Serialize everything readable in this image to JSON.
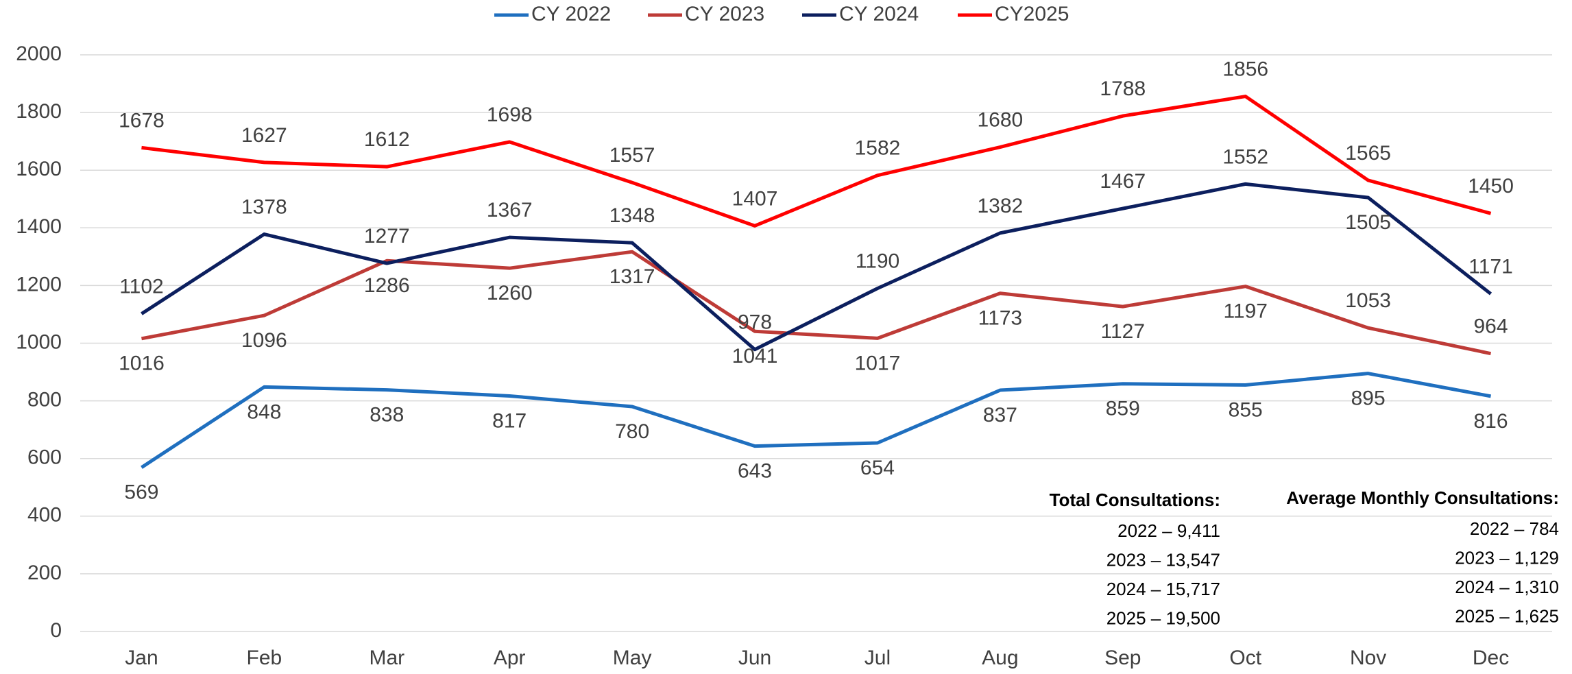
{
  "chart_data": {
    "type": "line",
    "categories": [
      "Jan",
      "Feb",
      "Mar",
      "Apr",
      "May",
      "Jun",
      "Jul",
      "Aug",
      "Sep",
      "Oct",
      "Nov",
      "Dec"
    ],
    "series": [
      {
        "name": "CY 2022",
        "color": "#1f6fbf",
        "values": [
          569,
          848,
          838,
          817,
          780,
          643,
          654,
          837,
          859,
          855,
          895,
          816
        ]
      },
      {
        "name": "CY 2023",
        "color": "#be3b37",
        "values": [
          1016,
          1096,
          1286,
          1260,
          1317,
          1041,
          1017,
          1173,
          1127,
          1197,
          1053,
          964
        ]
      },
      {
        "name": "CY 2024",
        "color": "#0c1f5e",
        "values": [
          1102,
          1378,
          1277,
          1367,
          1348,
          978,
          1190,
          1382,
          1467,
          1552,
          1505,
          1171
        ]
      },
      {
        "name": "CY2025",
        "color": "#ff0000",
        "values": [
          1678,
          1627,
          1612,
          1698,
          1557,
          1407,
          1582,
          1680,
          1788,
          1856,
          1565,
          1450
        ]
      }
    ],
    "ylim": [
      0,
      2000
    ],
    "yticks": [
      0,
      200,
      400,
      600,
      800,
      1000,
      1200,
      1400,
      1600,
      1800,
      2000
    ],
    "grid": true,
    "legend": "top",
    "annotations": [
      {
        "title": "Total Consultations:",
        "lines": [
          "2022 – 9,411",
          "2023 – 13,547",
          "2024 – 15,717",
          "2025 – 19,500"
        ]
      },
      {
        "title": "Average Monthly Consultations:",
        "lines": [
          "2022 – 784",
          "2023 – 1,129",
          "2024 – 1,310",
          "2025 – 1,625"
        ]
      }
    ]
  }
}
